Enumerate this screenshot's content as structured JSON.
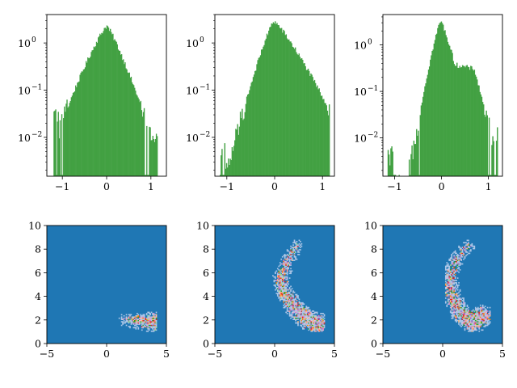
{
  "figure": {
    "background": "#ffffff"
  },
  "colors": {
    "hist_fill": "#43a143",
    "density_background": "#1f77b4",
    "density_palette": [
      "#aec7e8",
      "#ff7f0e",
      "#ffbb78",
      "#2ca02c",
      "#98df8a",
      "#d62728",
      "#ff9896",
      "#9467bd",
      "#c5b0d5",
      "#e377c2",
      "#f7b6d2",
      "#7f7f7f"
    ]
  },
  "chart_data": [
    {
      "type": "histogram",
      "panel": "top-left",
      "yscale": "log",
      "xlim": [
        -1.35,
        1.35
      ],
      "ylim": [
        0.0015,
        4.0
      ],
      "xticks": [
        -1,
        0,
        1
      ],
      "xtick_labels": [
        "−1",
        "0",
        "1"
      ],
      "yticks": [
        0.01,
        0.1,
        1
      ],
      "ytick_labels": [
        "10",
        "10",
        "10"
      ],
      "ytick_exponents": [
        "−2",
        "−1",
        "0"
      ],
      "bin_range": [
        -1.2,
        1.15
      ],
      "bins": 120,
      "shape": {
        "peak_x": 0.0,
        "peak_y": 2.3,
        "left_slope": 4.6,
        "right_slope": 5.3,
        "floor": 0.0016,
        "left_end": 0.028,
        "right_end": 0.012
      }
    },
    {
      "type": "histogram",
      "panel": "top-middle",
      "yscale": "log",
      "xlim": [
        -1.25,
        1.25
      ],
      "ylim": [
        0.0015,
        4.0
      ],
      "xticks": [
        -1,
        0,
        1
      ],
      "xtick_labels": [
        "−1",
        "0",
        "1"
      ],
      "yticks": [
        0.01,
        0.1,
        1
      ],
      "ytick_labels": [
        "10",
        "10",
        "10"
      ],
      "ytick_exponents": [
        "−2",
        "−1",
        "0"
      ],
      "bin_range": [
        -1.15,
        1.15
      ],
      "bins": 120,
      "shape": {
        "peak_x": -0.02,
        "peak_y": 2.9,
        "left_slope": 7.5,
        "right_slope": 3.6,
        "floor": 0.0016,
        "left_end": 0.006,
        "right_end": 0.008
      }
    },
    {
      "type": "histogram",
      "panel": "top-right",
      "yscale": "log",
      "xlim": [
        -1.25,
        1.3
      ],
      "ylim": [
        0.0015,
        4.5
      ],
      "xticks": [
        -1,
        0,
        1
      ],
      "xtick_labels": [
        "−1",
        "0",
        "1"
      ],
      "yticks": [
        0.01,
        0.1,
        1
      ],
      "ytick_labels": [
        "10",
        "10",
        "10"
      ],
      "ytick_exponents": [
        "−2",
        "−1",
        "0"
      ],
      "bin_range": [
        -1.15,
        1.2
      ],
      "bins": 120,
      "shape": {
        "peak_x": -0.02,
        "peak_y": 3.3,
        "left_slope": 12.0,
        "right_slope": 9.0,
        "plateau_x": [
          0.15,
          0.7
        ],
        "plateau_y": 0.4,
        "floor": 0.0016,
        "left_end": 0.004,
        "right_end": 0.01
      }
    },
    {
      "type": "heatmap",
      "panel": "bottom-left",
      "xlim": [
        -5,
        5
      ],
      "ylim": [
        0,
        10
      ],
      "xticks": [
        -5,
        0,
        5
      ],
      "xtick_labels": [
        "−5",
        "0",
        "5"
      ],
      "yticks": [
        0,
        2,
        4,
        6,
        8,
        10
      ],
      "ytick_labels": [
        "0",
        "2",
        "4",
        "6",
        "8",
        "10"
      ],
      "path": [
        [
          4.2,
          1.8
        ],
        [
          3.3,
          1.9
        ],
        [
          2.3,
          1.9
        ],
        [
          1.5,
          2.0
        ]
      ],
      "extent_x": [
        0.8,
        4.2
      ],
      "extent_y": [
        1.0,
        5.3
      ]
    },
    {
      "type": "heatmap",
      "panel": "bottom-middle",
      "xlim": [
        -5,
        5
      ],
      "ylim": [
        0,
        10
      ],
      "xticks": [
        -5,
        0,
        5
      ],
      "xtick_labels": [
        "−5",
        "0",
        "5"
      ],
      "yticks": [
        0,
        2,
        4,
        6,
        8,
        10
      ],
      "ytick_labels": [
        "0",
        "2",
        "4",
        "6",
        "8",
        "10"
      ],
      "path": [
        [
          3.8,
          1.6
        ],
        [
          2.8,
          2.0
        ],
        [
          1.8,
          2.9
        ],
        [
          0.8,
          4.3
        ],
        [
          0.5,
          5.5
        ],
        [
          1.0,
          6.8
        ],
        [
          1.8,
          8.3
        ]
      ],
      "extent_x": [
        -0.3,
        4.2
      ],
      "extent_y": [
        1.0,
        8.8
      ]
    },
    {
      "type": "heatmap",
      "panel": "bottom-right",
      "xlim": [
        -5,
        5
      ],
      "ylim": [
        0,
        10
      ],
      "xticks": [
        -5,
        0,
        5
      ],
      "xtick_labels": [
        "−5",
        "0",
        "5"
      ],
      "yticks": [
        0,
        2,
        4,
        6,
        8,
        10
      ],
      "ytick_labels": [
        "0",
        "2",
        "4",
        "6",
        "8",
        "10"
      ],
      "path": [
        [
          3.3,
          2.3
        ],
        [
          2.5,
          1.7
        ],
        [
          1.5,
          2.6
        ],
        [
          0.7,
          4.2
        ],
        [
          0.6,
          5.8
        ],
        [
          1.2,
          7.3
        ],
        [
          2.2,
          8.3
        ]
      ],
      "extent_x": [
        0.2,
        4.0
      ],
      "extent_y": [
        1.0,
        8.7
      ]
    }
  ]
}
